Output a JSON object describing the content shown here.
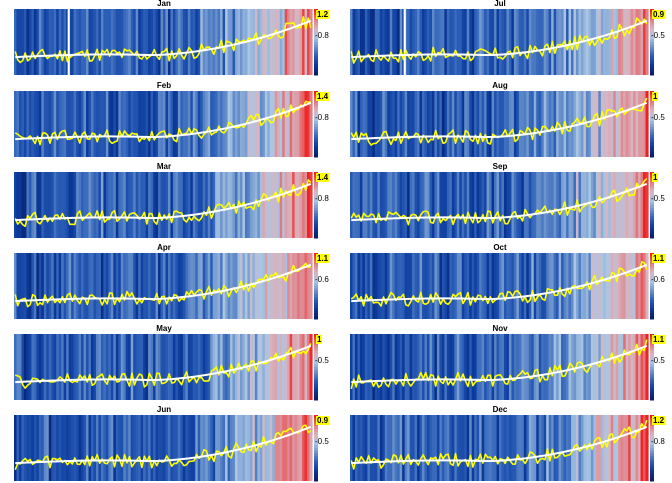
{
  "chart_data": [
    {
      "type": "heatmap",
      "title": "Jan",
      "colorbar_max": "1.2",
      "colorbar_min": "-0.8",
      "seed": 11,
      "anomaly": true
    },
    {
      "type": "heatmap",
      "title": "Jul",
      "colorbar_max": "0.9",
      "colorbar_min": "-0.5",
      "seed": 17,
      "anomaly": true
    },
    {
      "type": "heatmap",
      "title": "Feb",
      "colorbar_max": "1.4",
      "colorbar_min": "-0.8",
      "seed": 23,
      "anomaly": false
    },
    {
      "type": "heatmap",
      "title": "Aug",
      "colorbar_max": "1",
      "colorbar_min": "-0.5",
      "seed": 29,
      "anomaly": false
    },
    {
      "type": "heatmap",
      "title": "Mar",
      "colorbar_max": "1.4",
      "colorbar_min": "-0.8",
      "seed": 31,
      "anomaly": false
    },
    {
      "type": "heatmap",
      "title": "Sep",
      "colorbar_max": "1",
      "colorbar_min": "-0.5",
      "seed": 37,
      "anomaly": false
    },
    {
      "type": "heatmap",
      "title": "Apr",
      "colorbar_max": "1.1",
      "colorbar_min": "-0.6",
      "seed": 41,
      "anomaly": false
    },
    {
      "type": "heatmap",
      "title": "Oct",
      "colorbar_max": "1.1",
      "colorbar_min": "-0.6",
      "seed": 43,
      "anomaly": false
    },
    {
      "type": "heatmap",
      "title": "May",
      "colorbar_max": "1",
      "colorbar_min": "-0.5",
      "seed": 47,
      "anomaly": false
    },
    {
      "type": "heatmap",
      "title": "Nov",
      "colorbar_max": "1.1",
      "colorbar_min": "-0.5",
      "seed": 53,
      "anomaly": false
    },
    {
      "type": "heatmap",
      "title": "Jun",
      "colorbar_max": "0.9",
      "colorbar_min": "-0.5",
      "seed": 59,
      "anomaly": false
    },
    {
      "type": "heatmap",
      "title": "Dec",
      "colorbar_max": "1.2",
      "colorbar_min": "-0.8",
      "seed": 61,
      "anomaly": false
    }
  ],
  "colors": {
    "stripe_scale": [
      "#08216b",
      "#0b3a9c",
      "#2c5fb8",
      "#6b93cc",
      "#a9c6e4",
      "#d9b3bf",
      "#e07a80",
      "#f01f1f"
    ],
    "series_line": "#ffff00",
    "trend_line": "#ffffff",
    "colorbar_max_bg": "#ffff00"
  }
}
